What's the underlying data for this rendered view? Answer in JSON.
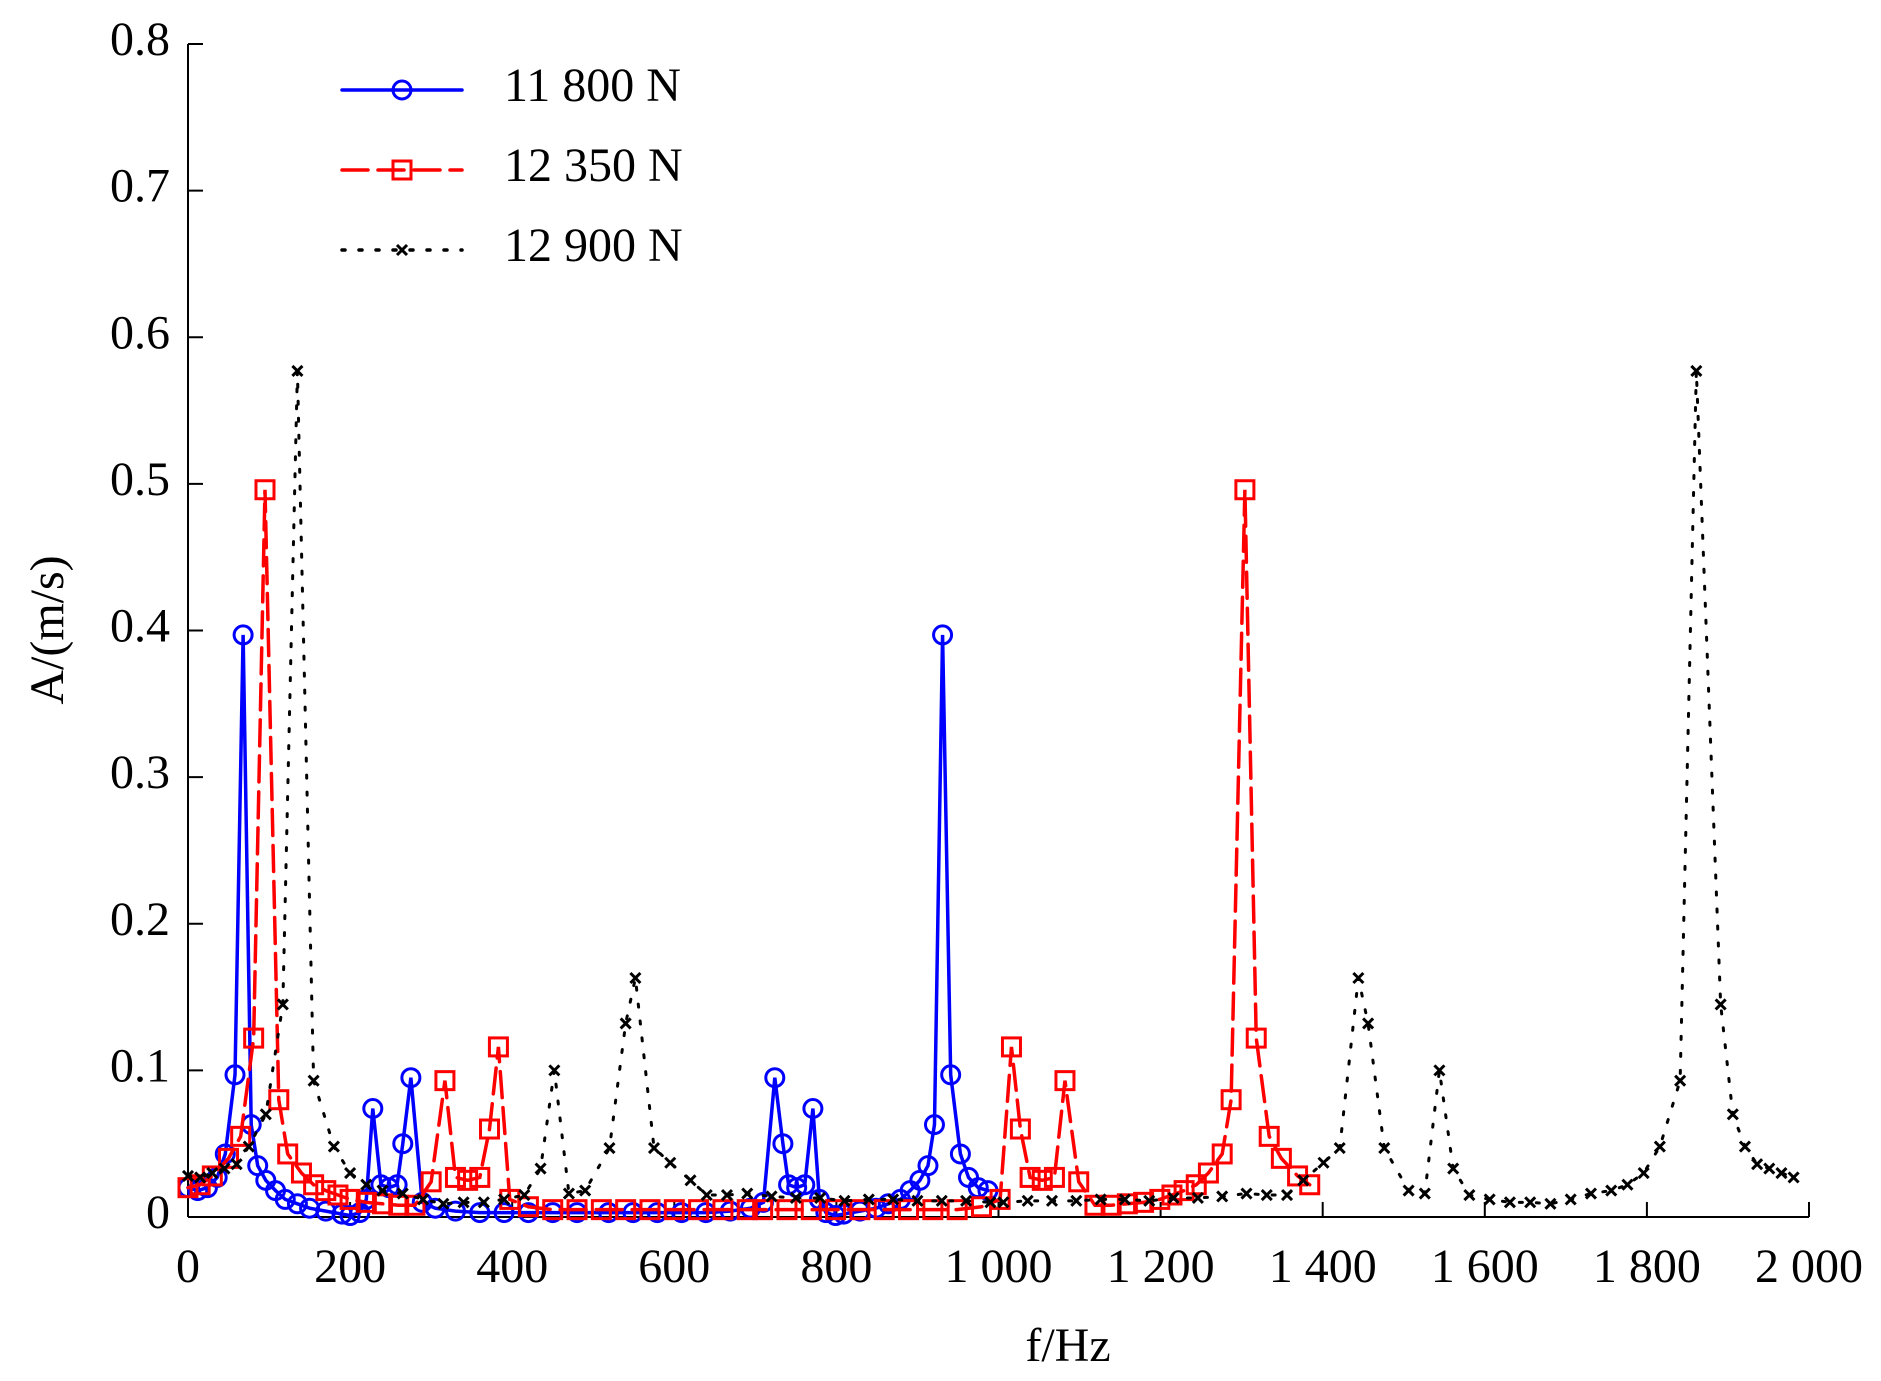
{
  "chart_data": {
    "type": "line",
    "x_label": "f/Hz",
    "y_label": "A/(m/s)",
    "xlim": [
      0,
      2000
    ],
    "ylim": [
      0,
      0.8
    ],
    "xticks": [
      0,
      200,
      400,
      600,
      800,
      {
        "value": 1000,
        "label": "1 000"
      },
      {
        "value": 1200,
        "label": "1 200"
      },
      {
        "value": 1400,
        "label": "1 400"
      },
      {
        "value": 1600,
        "label": "1 600"
      },
      {
        "value": 1800,
        "label": "1 800"
      },
      {
        "value": 2000,
        "label": "2 000"
      }
    ],
    "yticks": [
      0,
      0.1,
      0.2,
      0.3,
      0.4,
      0.5,
      0.6,
      0.7,
      0.8
    ],
    "legend": "upper left",
    "series": [
      {
        "name": "11 800 N",
        "color": "#0000ff",
        "marker": "circle",
        "line_style": "solid",
        "x": [
          0,
          12,
          24,
          36,
          46,
          58,
          68,
          78,
          86,
          96,
          108,
          120,
          135,
          150,
          170,
          190,
          200,
          212,
          220,
          228,
          238,
          248,
          258,
          265,
          275,
          289,
          305,
          330,
          360,
          390,
          420,
          450,
          480,
          519,
          549,
          579,
          609,
          639,
          669,
          694,
          710,
          724,
          734,
          741,
          751,
          761,
          771,
          779,
          787,
          799,
          809,
          829,
          849,
          864,
          879,
          891,
          903,
          913,
          921,
          931,
          941,
          953,
          963,
          975,
          987
        ],
        "values": [
          0.02,
          0.018,
          0.02,
          0.027,
          0.043,
          0.097,
          0.397,
          0.063,
          0.035,
          0.025,
          0.018,
          0.012,
          0.009,
          0.006,
          0.004,
          0.002,
          0.001,
          0.003,
          0.012,
          0.074,
          0.022,
          0.02,
          0.022,
          0.05,
          0.095,
          0.01,
          0.006,
          0.004,
          0.003,
          0.003,
          0.003,
          0.003,
          0.003,
          0.003,
          0.003,
          0.003,
          0.003,
          0.003,
          0.004,
          0.006,
          0.01,
          0.095,
          0.05,
          0.022,
          0.02,
          0.022,
          0.074,
          0.012,
          0.003,
          0.001,
          0.002,
          0.004,
          0.006,
          0.009,
          0.012,
          0.018,
          0.025,
          0.035,
          0.063,
          0.397,
          0.097,
          0.043,
          0.027,
          0.02,
          0.018
        ]
      },
      {
        "name": "12 350 N",
        "color": "#ff0000",
        "marker": "square",
        "line_style": "dashed",
        "x": [
          0,
          15,
          30,
          50,
          65,
          81,
          95,
          112,
          123,
          140,
          155,
          170,
          185,
          200,
          220,
          240,
          260,
          280,
          300,
          317,
          330,
          345,
          360,
          372,
          383,
          397,
          420,
          450,
          480,
          510,
          540,
          570,
          600,
          630,
          660,
          690,
          709,
          739,
          769,
          799,
          829,
          859,
          889,
          919,
          949,
          979,
          1002,
          1016,
          1027,
          1039,
          1054,
          1069,
          1082,
          1099,
          1119,
          1139,
          1159,
          1179,
          1199,
          1214,
          1229,
          1244,
          1259,
          1276,
          1287,
          1304,
          1318,
          1334,
          1349,
          1369,
          1384
        ],
        "values": [
          0.02,
          0.022,
          0.028,
          0.04,
          0.055,
          0.122,
          0.496,
          0.08,
          0.043,
          0.03,
          0.022,
          0.018,
          0.015,
          0.012,
          0.01,
          0.009,
          0.008,
          0.008,
          0.024,
          0.093,
          0.027,
          0.025,
          0.027,
          0.06,
          0.116,
          0.012,
          0.007,
          0.005,
          0.005,
          0.005,
          0.005,
          0.005,
          0.005,
          0.005,
          0.005,
          0.005,
          0.005,
          0.005,
          0.005,
          0.005,
          0.005,
          0.005,
          0.005,
          0.005,
          0.005,
          0.007,
          0.012,
          0.116,
          0.06,
          0.027,
          0.025,
          0.027,
          0.093,
          0.024,
          0.008,
          0.008,
          0.009,
          0.01,
          0.012,
          0.015,
          0.018,
          0.022,
          0.03,
          0.043,
          0.08,
          0.496,
          0.122,
          0.055,
          0.04,
          0.028,
          0.022
        ]
      },
      {
        "name": "12 900 N",
        "color": "#000000",
        "marker": "x",
        "line_style": "dotted",
        "x": [
          0,
          15,
          30,
          45,
          60,
          75,
          96,
          117,
          135,
          155,
          180,
          200,
          220,
          240,
          265,
          290,
          315,
          340,
          365,
          390,
          415,
          435,
          452,
          470,
          490,
          520,
          540,
          552,
          575,
          595,
          620,
          640,
          665,
          690,
          720,
          750,
          780,
          810,
          840,
          870,
          900,
          930,
          960,
          990,
          1006,
          1036,
          1066,
          1096,
          1126,
          1156,
          1186,
          1216,
          1246,
          1276,
          1306,
          1331,
          1356,
          1376,
          1401,
          1421,
          1444,
          1456,
          1476,
          1506,
          1526,
          1544,
          1561,
          1581,
          1606,
          1631,
          1656,
          1681,
          1706,
          1731,
          1756,
          1776,
          1796,
          1816,
          1841,
          1861,
          1891,
          1906,
          1921,
          1936,
          1951,
          1966,
          1981
        ],
        "values": [
          0.028,
          0.027,
          0.03,
          0.033,
          0.036,
          0.048,
          0.07,
          0.145,
          0.577,
          0.093,
          0.048,
          0.03,
          0.022,
          0.018,
          0.016,
          0.012,
          0.009,
          0.01,
          0.01,
          0.012,
          0.015,
          0.033,
          0.1,
          0.016,
          0.018,
          0.047,
          0.132,
          0.163,
          0.047,
          0.037,
          0.025,
          0.015,
          0.015,
          0.016,
          0.014,
          0.013,
          0.013,
          0.011,
          0.012,
          0.012,
          0.011,
          0.011,
          0.011,
          0.01,
          0.01,
          0.011,
          0.011,
          0.011,
          0.012,
          0.012,
          0.011,
          0.013,
          0.013,
          0.014,
          0.016,
          0.015,
          0.015,
          0.025,
          0.037,
          0.047,
          0.163,
          0.132,
          0.047,
          0.018,
          0.016,
          0.1,
          0.033,
          0.015,
          0.012,
          0.01,
          0.01,
          0.009,
          0.012,
          0.016,
          0.018,
          0.022,
          0.03,
          0.048,
          0.093,
          0.577,
          0.145,
          0.07,
          0.048,
          0.036,
          0.033,
          0.03,
          0.027
        ]
      }
    ]
  }
}
